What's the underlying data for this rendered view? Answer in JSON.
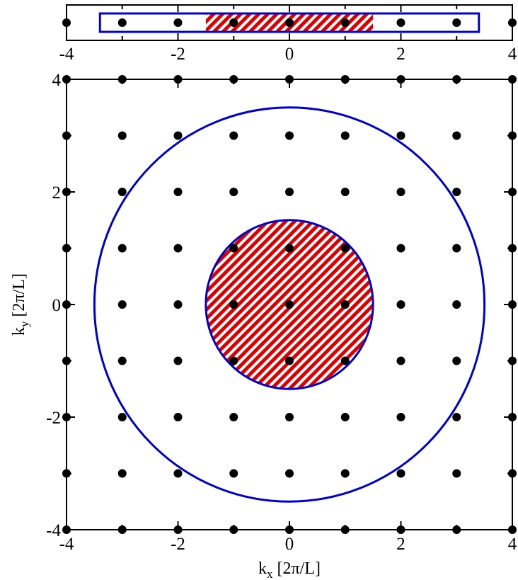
{
  "chart_data": [
    {
      "type": "scatter",
      "description_role": "one-dimensional lattice strip",
      "xlabel": "",
      "ylabel": "",
      "xlim": [
        -4,
        4
      ],
      "ticks_x": [
        -4,
        -2,
        0,
        2,
        4
      ],
      "tick_labels_x": [
        "-4",
        "-2",
        "0",
        "2",
        "4"
      ],
      "grid": false,
      "points_x": [
        -4,
        -3,
        -2,
        -1,
        0,
        1,
        2,
        3,
        4
      ],
      "regions": [
        {
          "shape": "interval",
          "x_range": [
            -3.4,
            3.4
          ],
          "style": "outline",
          "color": "#0000cc"
        },
        {
          "shape": "interval",
          "x_range": [
            -1.5,
            1.5
          ],
          "style": "hatched",
          "color": "#dd0000"
        }
      ]
    },
    {
      "type": "scatter",
      "description_role": "two-dimensional lattice",
      "xlabel": "k",
      "xlabel_sub": "x",
      "xlabel_unit": " [2π/L]",
      "ylabel": "k",
      "ylabel_sub": "y",
      "ylabel_unit": " [2π/L]",
      "xlim": [
        -4,
        4
      ],
      "ylim": [
        -4,
        4
      ],
      "ticks": [
        -4,
        -2,
        0,
        2,
        4
      ],
      "tick_labels": [
        "-4",
        "-2",
        "0",
        "2",
        "4"
      ],
      "grid": false,
      "lattice": {
        "min": -4,
        "max": 4,
        "step": 1
      },
      "regions": [
        {
          "shape": "circle",
          "center": [
            0,
            0
          ],
          "radius": 3.5,
          "style": "outline",
          "color": "#0000cc"
        },
        {
          "shape": "circle",
          "center": [
            0,
            0
          ],
          "radius": 1.5,
          "style": "hatched",
          "color": "#dd0000",
          "outline_color": "#0000cc"
        }
      ]
    }
  ]
}
